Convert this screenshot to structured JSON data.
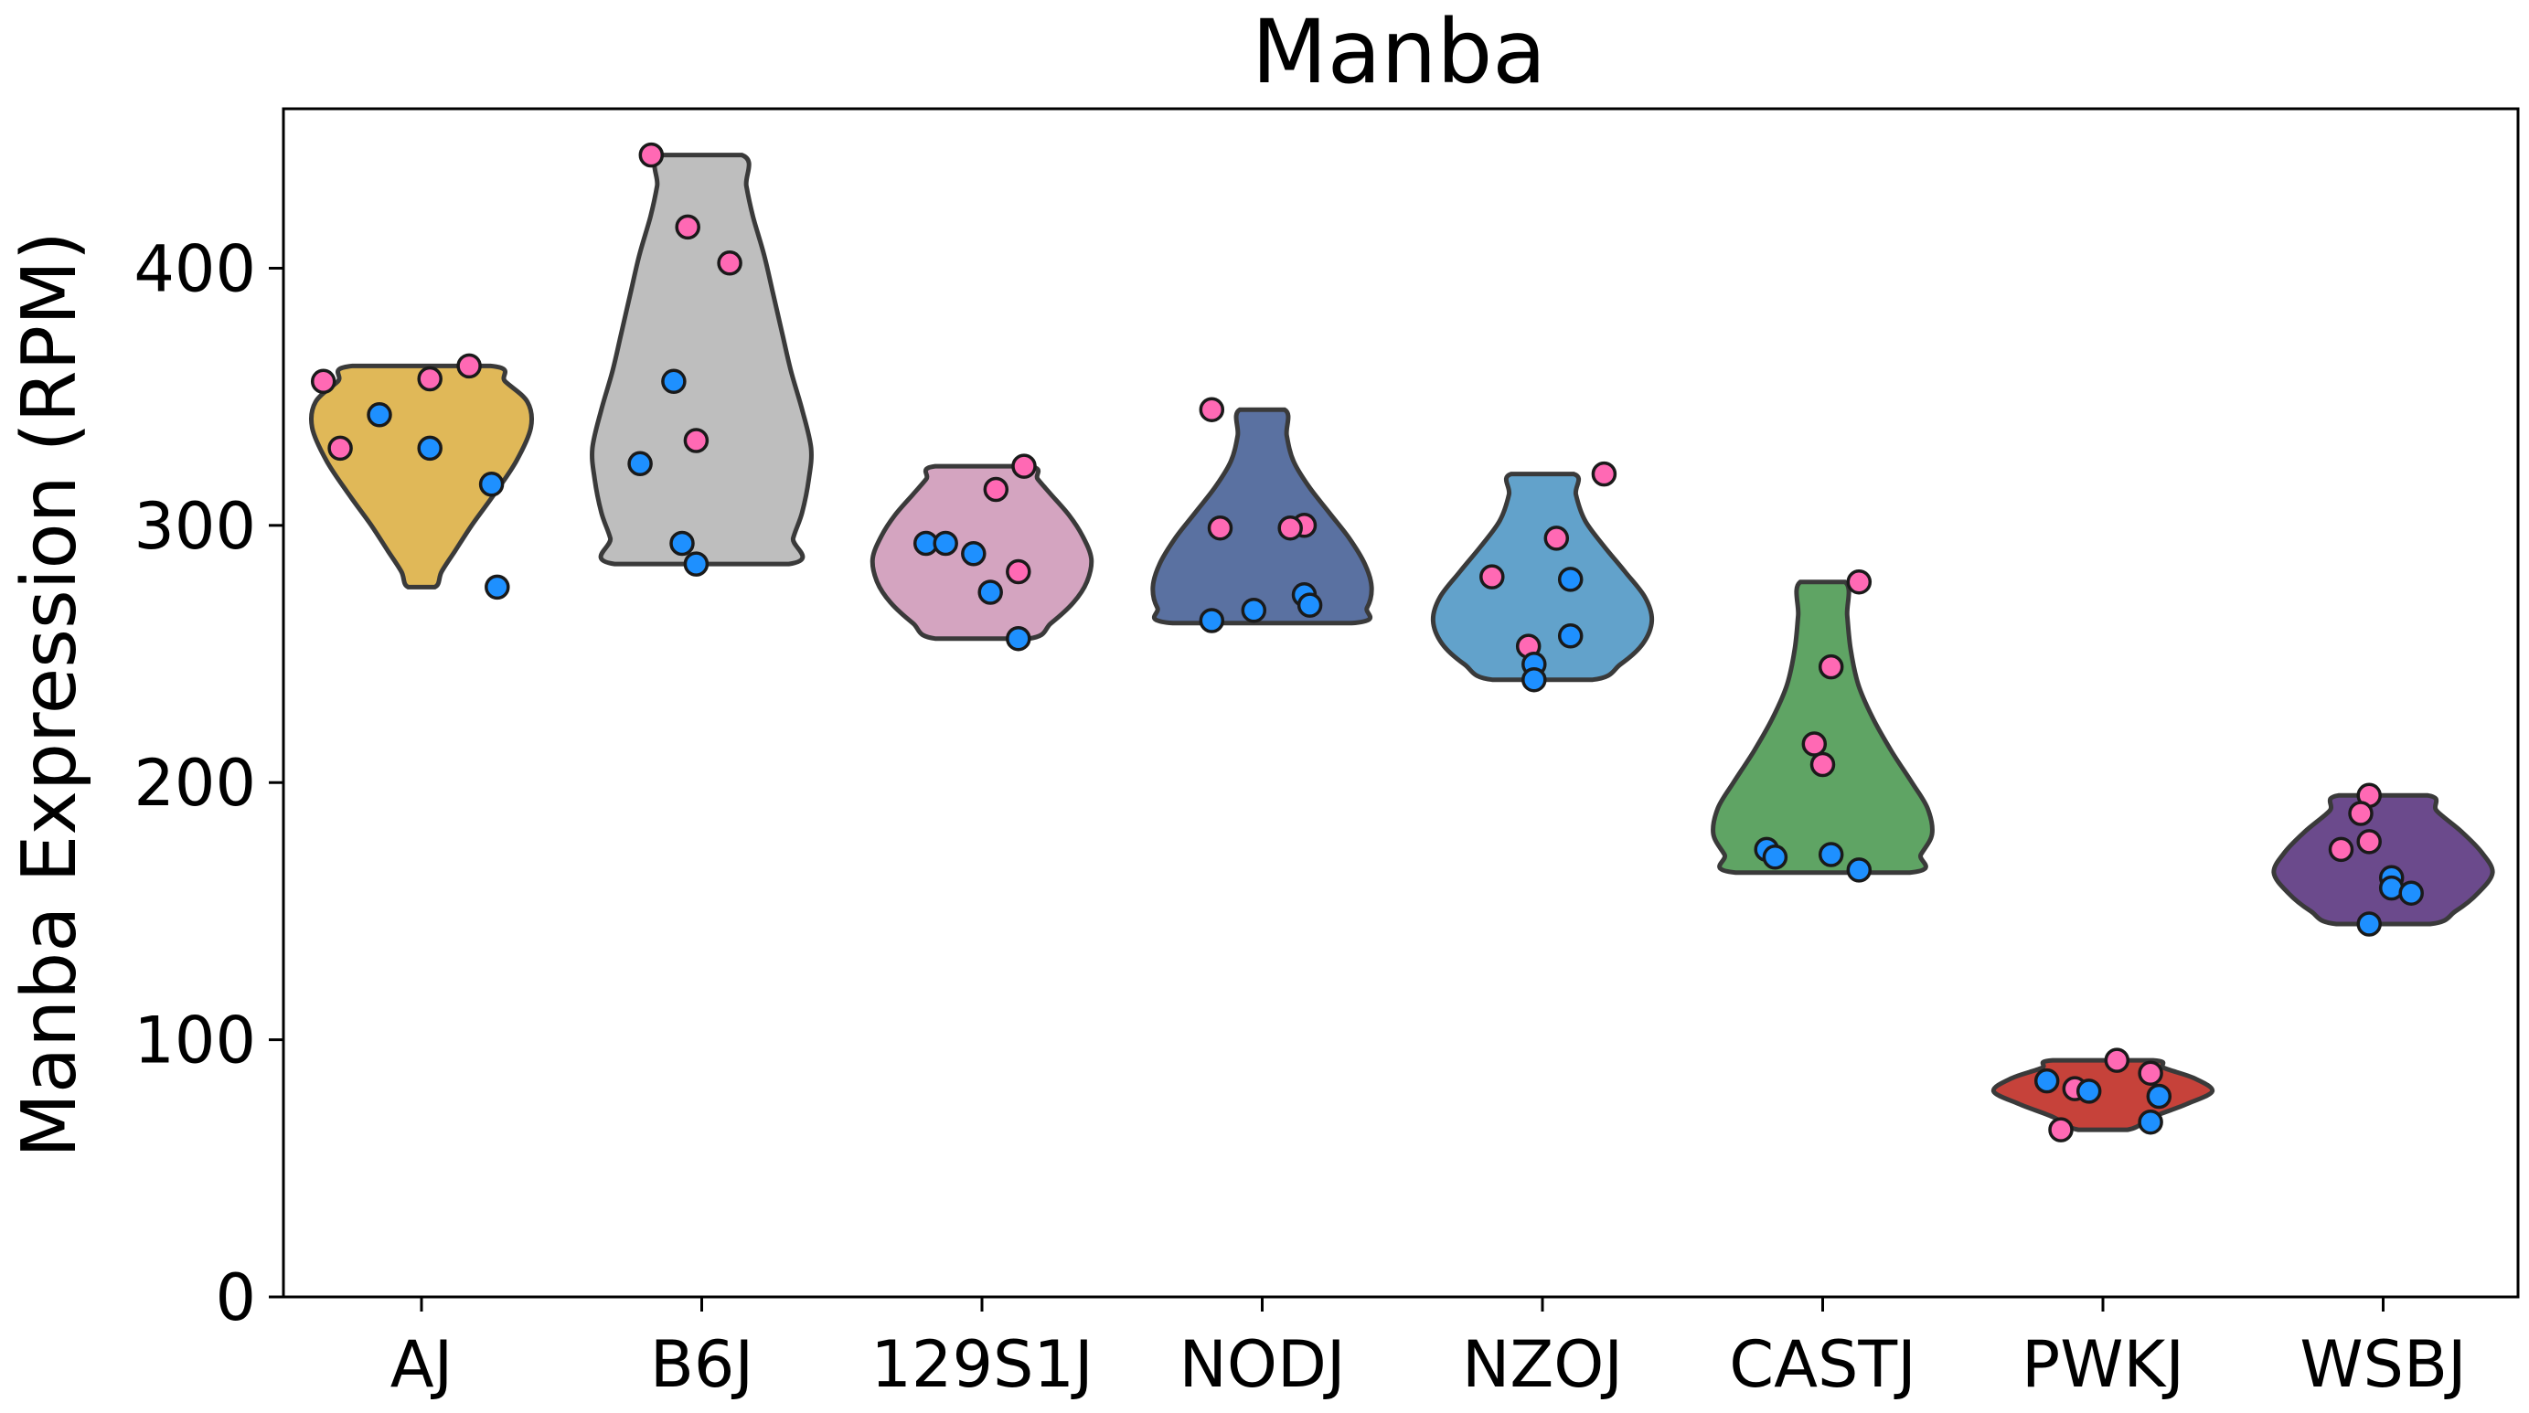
{
  "chart_data": {
    "type": "violin",
    "title": "Manba",
    "xlabel": "",
    "ylabel": "Manba Expression (RPM)",
    "ylim": [
      0,
      462
    ],
    "yticks": [
      0,
      100,
      200,
      300,
      400
    ],
    "grid": false,
    "categories": [
      "AJ",
      "B6J",
      "129S1J",
      "NODJ",
      "NZOJ",
      "CASTJ",
      "PWKJ",
      "WSBJ"
    ],
    "colors": {
      "AJ": "#E0B858",
      "B6J": "#BEBEBE",
      "129S1J": "#D4A4C0",
      "NODJ": "#5A71A1",
      "NZOJ": "#62A2CB",
      "CASTJ": "#5FA464",
      "PWKJ": "#C6423A",
      "WSBJ": "#6B4A8C",
      "pink_points": "#FF69B4",
      "blue_points": "#1E90FF"
    },
    "groups": [
      {
        "name": "AJ",
        "violin": {
          "min": 276,
          "max": 362,
          "profile": [
            [
              276,
              0.12
            ],
            [
              282,
              0.18
            ],
            [
              290,
              0.3
            ],
            [
              300,
              0.45
            ],
            [
              312,
              0.65
            ],
            [
              325,
              0.85
            ],
            [
              338,
              0.98
            ],
            [
              348,
              0.95
            ],
            [
              356,
              0.75
            ],
            [
              362,
              0.62
            ]
          ]
        },
        "points": [
          {
            "y": 356,
            "dx": -0.35,
            "color": "pink"
          },
          {
            "y": 357,
            "dx": 0.03,
            "color": "pink"
          },
          {
            "y": 362,
            "dx": 0.17,
            "color": "pink"
          },
          {
            "y": 343,
            "dx": -0.15,
            "color": "blue"
          },
          {
            "y": 330,
            "dx": -0.29,
            "color": "pink"
          },
          {
            "y": 330,
            "dx": 0.03,
            "color": "blue"
          },
          {
            "y": 316,
            "dx": 0.25,
            "color": "blue"
          },
          {
            "y": 276,
            "dx": 0.27,
            "color": "blue"
          }
        ]
      },
      {
        "name": "B6J",
        "violin": {
          "min": 285,
          "max": 444,
          "profile": [
            [
              285,
              0.78
            ],
            [
              295,
              0.82
            ],
            [
              305,
              0.9
            ],
            [
              318,
              0.96
            ],
            [
              330,
              0.98
            ],
            [
              345,
              0.9
            ],
            [
              360,
              0.8
            ],
            [
              375,
              0.72
            ],
            [
              390,
              0.64
            ],
            [
              405,
              0.56
            ],
            [
              420,
              0.46
            ],
            [
              432,
              0.4
            ],
            [
              444,
              0.36
            ]
          ]
        },
        "points": [
          {
            "y": 444,
            "dx": -0.18,
            "color": "pink"
          },
          {
            "y": 416,
            "dx": -0.05,
            "color": "pink"
          },
          {
            "y": 402,
            "dx": 0.1,
            "color": "pink"
          },
          {
            "y": 356,
            "dx": -0.1,
            "color": "blue"
          },
          {
            "y": 333,
            "dx": -0.02,
            "color": "pink"
          },
          {
            "y": 324,
            "dx": -0.22,
            "color": "blue"
          },
          {
            "y": 293,
            "dx": -0.07,
            "color": "blue"
          },
          {
            "y": 285,
            "dx": -0.02,
            "color": "blue"
          }
        ]
      },
      {
        "name": "129S1J",
        "violin": {
          "min": 256,
          "max": 323,
          "profile": [
            [
              256,
              0.42
            ],
            [
              262,
              0.62
            ],
            [
              270,
              0.82
            ],
            [
              278,
              0.94
            ],
            [
              287,
              0.98
            ],
            [
              296,
              0.9
            ],
            [
              304,
              0.78
            ],
            [
              312,
              0.62
            ],
            [
              318,
              0.5
            ],
            [
              323,
              0.42
            ]
          ]
        },
        "points": [
          {
            "y": 323,
            "dx": 0.15,
            "color": "pink"
          },
          {
            "y": 314,
            "dx": 0.05,
            "color": "pink"
          },
          {
            "y": 293,
            "dx": -0.2,
            "color": "blue"
          },
          {
            "y": 293,
            "dx": -0.13,
            "color": "blue"
          },
          {
            "y": 289,
            "dx": -0.03,
            "color": "blue"
          },
          {
            "y": 282,
            "dx": 0.13,
            "color": "pink"
          },
          {
            "y": 274,
            "dx": 0.03,
            "color": "blue"
          },
          {
            "y": 256,
            "dx": 0.13,
            "color": "blue"
          }
        ]
      },
      {
        "name": "NODJ",
        "violin": {
          "min": 262,
          "max": 345,
          "profile": [
            [
              262,
              0.8
            ],
            [
              268,
              0.94
            ],
            [
              276,
              0.98
            ],
            [
              285,
              0.92
            ],
            [
              295,
              0.78
            ],
            [
              305,
              0.6
            ],
            [
              315,
              0.42
            ],
            [
              325,
              0.28
            ],
            [
              335,
              0.22
            ],
            [
              345,
              0.2
            ]
          ]
        },
        "points": [
          {
            "y": 345,
            "dx": -0.18,
            "color": "pink"
          },
          {
            "y": 300,
            "dx": 0.15,
            "color": "pink"
          },
          {
            "y": 299,
            "dx": -0.15,
            "color": "pink"
          },
          {
            "y": 299,
            "dx": 0.1,
            "color": "pink"
          },
          {
            "y": 273,
            "dx": 0.15,
            "color": "blue"
          },
          {
            "y": 269,
            "dx": 0.17,
            "color": "blue"
          },
          {
            "y": 267,
            "dx": -0.03,
            "color": "blue"
          },
          {
            "y": 263,
            "dx": -0.18,
            "color": "blue"
          }
        ]
      },
      {
        "name": "NZOJ",
        "violin": {
          "min": 240,
          "max": 320,
          "profile": [
            [
              240,
              0.45
            ],
            [
              246,
              0.7
            ],
            [
              254,
              0.9
            ],
            [
              263,
              0.98
            ],
            [
              272,
              0.92
            ],
            [
              282,
              0.74
            ],
            [
              292,
              0.55
            ],
            [
              302,
              0.38
            ],
            [
              312,
              0.3
            ],
            [
              320,
              0.28
            ]
          ]
        },
        "points": [
          {
            "y": 320,
            "dx": 0.22,
            "color": "pink"
          },
          {
            "y": 295,
            "dx": 0.05,
            "color": "pink"
          },
          {
            "y": 280,
            "dx": -0.18,
            "color": "pink"
          },
          {
            "y": 279,
            "dx": 0.1,
            "color": "blue"
          },
          {
            "y": 257,
            "dx": 0.1,
            "color": "blue"
          },
          {
            "y": 253,
            "dx": -0.05,
            "color": "pink"
          },
          {
            "y": 246,
            "dx": -0.03,
            "color": "blue"
          },
          {
            "y": 240,
            "dx": -0.03,
            "color": "blue"
          }
        ]
      },
      {
        "name": "CASTJ",
        "violin": {
          "min": 165,
          "max": 278,
          "profile": [
            [
              165,
              0.78
            ],
            [
              172,
              0.88
            ],
            [
              180,
              0.98
            ],
            [
              190,
              0.94
            ],
            [
              200,
              0.8
            ],
            [
              212,
              0.62
            ],
            [
              225,
              0.45
            ],
            [
              238,
              0.32
            ],
            [
              252,
              0.25
            ],
            [
              265,
              0.22
            ],
            [
              278,
              0.2
            ]
          ]
        },
        "points": [
          {
            "y": 278,
            "dx": 0.13,
            "color": "pink"
          },
          {
            "y": 245,
            "dx": 0.03,
            "color": "pink"
          },
          {
            "y": 215,
            "dx": -0.03,
            "color": "pink"
          },
          {
            "y": 207,
            "dx": 0.0,
            "color": "pink"
          },
          {
            "y": 174,
            "dx": -0.2,
            "color": "blue"
          },
          {
            "y": 171,
            "dx": -0.17,
            "color": "blue"
          },
          {
            "y": 172,
            "dx": 0.03,
            "color": "blue"
          },
          {
            "y": 166,
            "dx": 0.13,
            "color": "blue"
          }
        ]
      },
      {
        "name": "PWKJ",
        "violin": {
          "min": 65,
          "max": 92,
          "profile": [
            [
              65,
              0.22
            ],
            [
              70,
              0.45
            ],
            [
              75,
              0.75
            ],
            [
              80,
              0.98
            ],
            [
              85,
              0.82
            ],
            [
              89,
              0.55
            ],
            [
              92,
              0.45
            ]
          ]
        },
        "points": [
          {
            "y": 92,
            "dx": 0.05,
            "color": "pink"
          },
          {
            "y": 87,
            "dx": 0.17,
            "color": "pink"
          },
          {
            "y": 84,
            "dx": -0.2,
            "color": "blue"
          },
          {
            "y": 81,
            "dx": -0.1,
            "color": "pink"
          },
          {
            "y": 80,
            "dx": -0.05,
            "color": "blue"
          },
          {
            "y": 78,
            "dx": 0.2,
            "color": "blue"
          },
          {
            "y": 68,
            "dx": 0.17,
            "color": "blue"
          },
          {
            "y": 65,
            "dx": -0.15,
            "color": "pink"
          }
        ]
      },
      {
        "name": "WSBJ",
        "violin": {
          "min": 145,
          "max": 195,
          "profile": [
            [
              145,
              0.42
            ],
            [
              150,
              0.65
            ],
            [
              157,
              0.85
            ],
            [
              165,
              0.98
            ],
            [
              173,
              0.88
            ],
            [
              181,
              0.7
            ],
            [
              189,
              0.48
            ],
            [
              195,
              0.4
            ]
          ]
        },
        "points": [
          {
            "y": 195,
            "dx": -0.05,
            "color": "pink"
          },
          {
            "y": 188,
            "dx": -0.08,
            "color": "pink"
          },
          {
            "y": 177,
            "dx": -0.05,
            "color": "pink"
          },
          {
            "y": 174,
            "dx": -0.15,
            "color": "pink"
          },
          {
            "y": 163,
            "dx": 0.03,
            "color": "blue"
          },
          {
            "y": 159,
            "dx": 0.03,
            "color": "blue"
          },
          {
            "y": 157,
            "dx": 0.1,
            "color": "blue"
          },
          {
            "y": 145,
            "dx": -0.05,
            "color": "blue"
          }
        ]
      }
    ]
  }
}
